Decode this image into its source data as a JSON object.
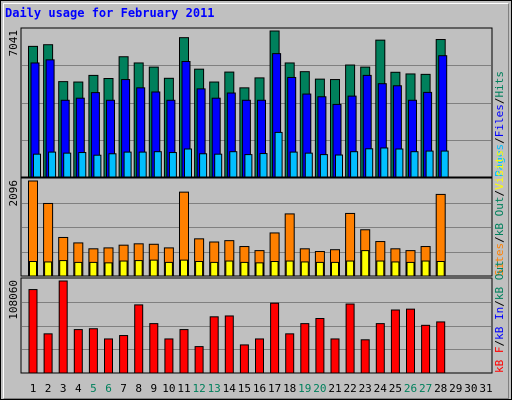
{
  "chart_data": [
    {
      "type": "bar",
      "title": "Daily usage for February 2011",
      "days": [
        "1",
        "2",
        "3",
        "4",
        "5",
        "6",
        "7",
        "8",
        "9",
        "10",
        "11",
        "12",
        "13",
        "14",
        "15",
        "16",
        "17",
        "18",
        "19",
        "20",
        "21",
        "22",
        "23",
        "24",
        "25",
        "26",
        "27",
        "28",
        "29",
        "30",
        "31"
      ],
      "weekend_days": [
        "5",
        "6",
        "12",
        "13",
        "19",
        "20",
        "26",
        "27"
      ],
      "ymax_label": "7041",
      "ymax": 7041,
      "legend": [
        "Pages",
        "Files",
        "Hits"
      ],
      "legend_separator": "/",
      "series": [
        {
          "name": "Hits",
          "color": "#00805c",
          "values": [
            6300,
            6380,
            4600,
            4580,
            4900,
            4750,
            5800,
            5500,
            5300,
            4760,
            6720,
            5200,
            4580,
            5060,
            4300,
            4780,
            7041,
            5500,
            5080,
            4720,
            4700,
            5400,
            5300,
            6600,
            5050,
            4970,
            4950,
            6630
          ]
        },
        {
          "name": "Files",
          "color": "#0000ff",
          "values": [
            5500,
            5650,
            3700,
            3800,
            4070,
            3700,
            4700,
            4300,
            4100,
            3700,
            5570,
            4250,
            3800,
            4050,
            3700,
            3700,
            5950,
            4800,
            4000,
            3870,
            3500,
            3900,
            4900,
            4500,
            4400,
            3700,
            4080,
            5850
          ]
        },
        {
          "name": "Pages",
          "color": "#00bfff",
          "values": [
            1100,
            1200,
            1150,
            1180,
            1050,
            1120,
            1200,
            1200,
            1220,
            1180,
            1350,
            1120,
            1100,
            1220,
            1080,
            1130,
            2150,
            1200,
            1150,
            1080,
            1060,
            1220,
            1360,
            1400,
            1350,
            1220,
            1250,
            1250
          ]
        }
      ]
    },
    {
      "type": "bar",
      "ymax_label": "2096",
      "ymax": 2096,
      "legend": [
        "Sites",
        "kB Out",
        "Visits"
      ],
      "legend_separator": "/",
      "series": [
        {
          "name": "Sites",
          "color": "#ff8000",
          "values": [
            2096,
            1600,
            850,
            730,
            600,
            620,
            680,
            710,
            700,
            620,
            1850,
            820,
            750,
            780,
            650,
            560,
            950,
            1370,
            600,
            540,
            580,
            1380,
            1020,
            760,
            600,
            560,
            650,
            1800
          ]
        },
        {
          "name": "Visits",
          "color": "#ffff00",
          "values": [
            320,
            310,
            340,
            300,
            300,
            290,
            330,
            340,
            350,
            300,
            350,
            320,
            300,
            330,
            300,
            290,
            320,
            330,
            310,
            300,
            300,
            330,
            560,
            330,
            310,
            300,
            330,
            320
          ]
        }
      ]
    },
    {
      "type": "bar",
      "ymax_label": "108060",
      "ymax": 108060,
      "legend": [
        "kB F",
        "kB In",
        "kB Out"
      ],
      "legend_separator": "/",
      "series": [
        {
          "name": "kB F",
          "color": "#ff0000",
          "values": [
            98000,
            46000,
            108060,
            51000,
            52000,
            40000,
            44000,
            80000,
            58000,
            40000,
            51000,
            31000,
            66000,
            67000,
            33000,
            40000,
            82000,
            46000,
            58000,
            64000,
            40000,
            81000,
            39000,
            58000,
            74000,
            75000,
            56000,
            60000
          ]
        }
      ]
    }
  ],
  "colors": {
    "background": "#c0c0c0",
    "plot_background": "#c0c0c0",
    "grid": "#808080",
    "title": "#0000ff",
    "weekend_label": "#00805c",
    "weekday_label": "#000000",
    "kb_out": "#00805c",
    "kb_in": "#0000ff"
  }
}
